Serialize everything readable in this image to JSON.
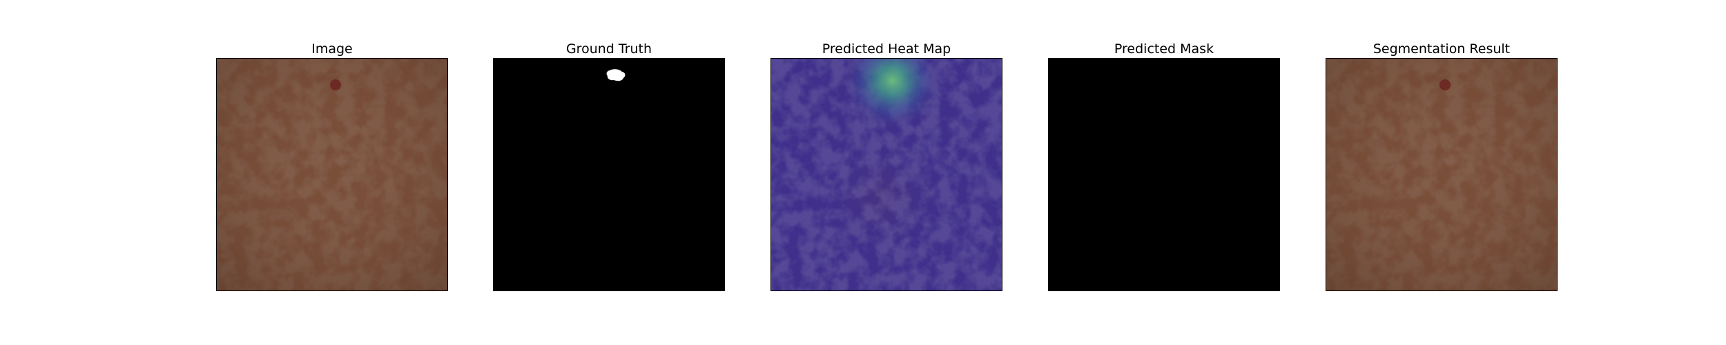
{
  "figure": {
    "panels": [
      {
        "title": "Image",
        "kind": "leather-photo"
      },
      {
        "title": "Ground Truth",
        "kind": "binary-mask"
      },
      {
        "title": "Predicted Heat Map",
        "kind": "heatmap-overlay"
      },
      {
        "title": "Predicted Mask",
        "kind": "empty-mask"
      },
      {
        "title": "Segmentation Result",
        "kind": "leather-photo"
      }
    ]
  },
  "colors": {
    "background": "#ffffff",
    "leather_base": "#7a4f3a",
    "leather_crease": "#5e3a2a",
    "defect_spot": "#6b2422",
    "mask_bg": "#000000",
    "mask_fg": "#ffffff",
    "heatmap_base": "#3f2f8a",
    "heatmap_hot": "#5fc07a"
  }
}
